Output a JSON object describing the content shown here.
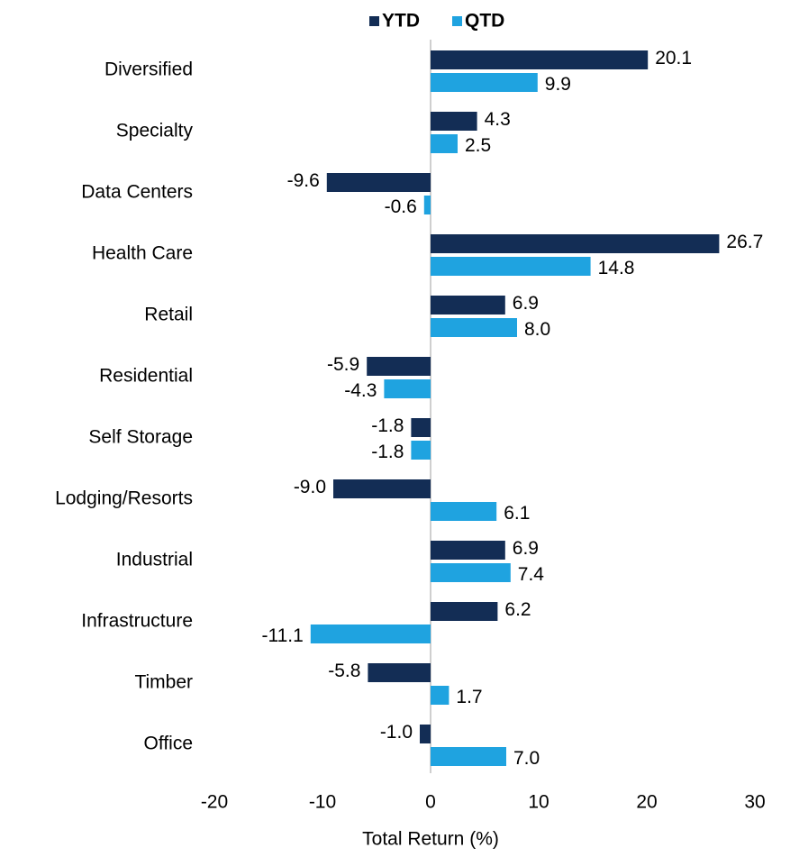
{
  "chart_data": {
    "type": "hbar",
    "x_label": "Total Return (%)",
    "categories": [
      "Diversified",
      "Specialty",
      "Data Centers",
      "Health Care",
      "Retail",
      "Residential",
      "Self Storage",
      "Lodging/Resorts",
      "Industrial",
      "Infrastructure",
      "Timber",
      "Office"
    ],
    "series": [
      {
        "name": "YTD",
        "color": "#132d55",
        "values": [
          20.1,
          4.3,
          -9.6,
          26.7,
          6.9,
          -5.9,
          -1.8,
          -9.0,
          6.9,
          6.2,
          -5.8,
          -1.0
        ],
        "value_labels": [
          "20.1",
          "4.3",
          "-9.6",
          "26.7",
          "6.9",
          "-5.9",
          "-1.8",
          "-9.0",
          "6.9",
          "6.2",
          "-5.8",
          "-1.0"
        ]
      },
      {
        "name": "QTD",
        "color": "#1fa3e0",
        "values": [
          9.9,
          2.5,
          -0.6,
          14.8,
          8.0,
          -4.3,
          -1.8,
          6.1,
          7.4,
          -11.1,
          1.7,
          7.0
        ],
        "value_labels": [
          "9.9",
          "2.5",
          "-0.6",
          "14.8",
          "8.0",
          "-4.3",
          "-1.8",
          "6.1",
          "7.4",
          "-11.1",
          "1.7",
          "7.0"
        ]
      }
    ],
    "xlim": [
      -20,
      30
    ],
    "xticks": [
      -20,
      -10,
      0,
      10,
      20,
      30
    ],
    "legend": "top"
  }
}
